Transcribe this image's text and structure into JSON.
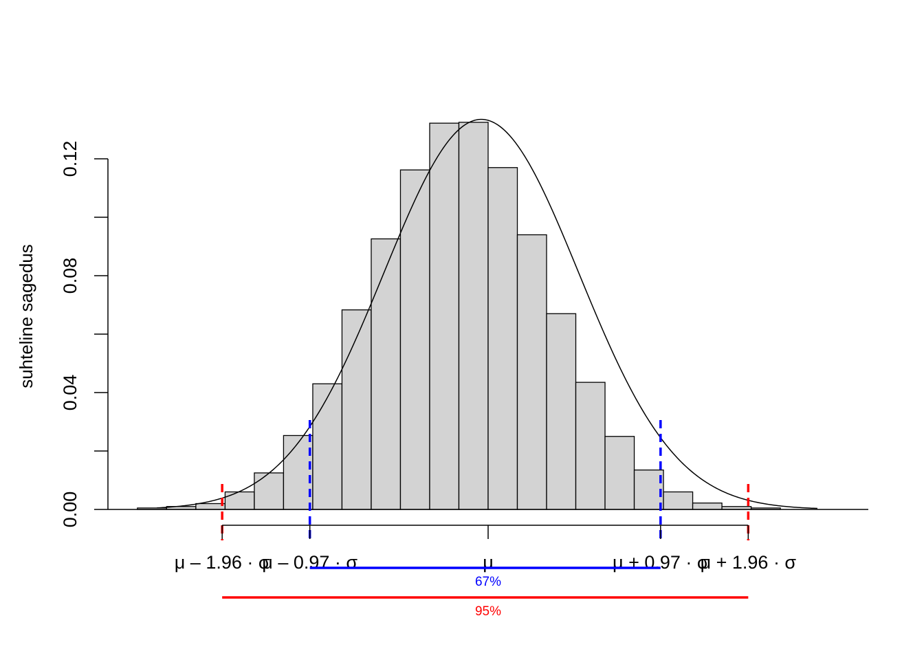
{
  "chart_data": {
    "type": "bar",
    "title": "",
    "xlabel": "",
    "ylabel": "suhteline sagedus",
    "ylim": [
      0,
      0.132
    ],
    "y_ticks": [
      "0.00",
      "0.04",
      "0.08",
      "0.12"
    ],
    "y_tick_values": [
      0,
      0.02,
      0.04,
      0.06,
      0.08,
      0.1,
      0.12
    ],
    "grid": false,
    "legend": "none",
    "x_range_sd": [
      -4,
      4
    ],
    "bin_width_sd": 0.3,
    "bins": [
      {
        "left": -3.6,
        "value": 0.0005
      },
      {
        "left": -3.3,
        "value": 0.001
      },
      {
        "left": -3.0,
        "value": 0.002
      },
      {
        "left": -2.7,
        "value": 0.006
      },
      {
        "left": -2.4,
        "value": 0.0125
      },
      {
        "left": -2.1,
        "value": 0.0253
      },
      {
        "left": -1.8,
        "value": 0.043
      },
      {
        "left": -1.5,
        "value": 0.0683
      },
      {
        "left": -1.2,
        "value": 0.0926
      },
      {
        "left": -0.9,
        "value": 0.1162
      },
      {
        "left": -0.6,
        "value": 0.1322
      },
      {
        "left": -0.3,
        "value": 0.1325
      },
      {
        "left": 0.0,
        "value": 0.117
      },
      {
        "left": 0.3,
        "value": 0.094
      },
      {
        "left": 0.6,
        "value": 0.067
      },
      {
        "left": 0.9,
        "value": 0.0435
      },
      {
        "left": 1.2,
        "value": 0.025
      },
      {
        "left": 1.5,
        "value": 0.0135
      },
      {
        "left": 1.8,
        "value": 0.006
      },
      {
        "left": 2.1,
        "value": 0.0022
      },
      {
        "left": 2.4,
        "value": 0.001
      },
      {
        "left": 2.7,
        "value": 0.0005
      }
    ],
    "density_curve": {
      "type": "normal",
      "mean_sd": -0.07,
      "peak": 0.1335
    },
    "x_tick_labels": [
      {
        "label": "μ – 1.96 · σ",
        "value": -2.73
      },
      {
        "label": "μ – 0.97 · σ",
        "value": -1.83
      },
      {
        "label": "μ",
        "value": 0.0
      },
      {
        "label": "μ + 0.97 · σ",
        "value": 1.77
      },
      {
        "label": "μ + 1.96 · σ",
        "value": 2.67
      }
    ],
    "vertical_lines": [
      {
        "value": -2.73,
        "color": "#ff0000"
      },
      {
        "value": -1.83,
        "color": "#0000ff"
      },
      {
        "value": 1.77,
        "color": "#0000ff"
      },
      {
        "value": 2.67,
        "color": "#ff0000"
      }
    ],
    "intervals": [
      {
        "label": "67%",
        "from": -1.83,
        "to": 1.77,
        "color": "#0000ff"
      },
      {
        "label": "95%",
        "from": -2.73,
        "to": 2.67,
        "color": "#ff0000"
      }
    ],
    "colors": {
      "bar_fill": "#d3d3d3",
      "bar_stroke": "#000000"
    }
  }
}
